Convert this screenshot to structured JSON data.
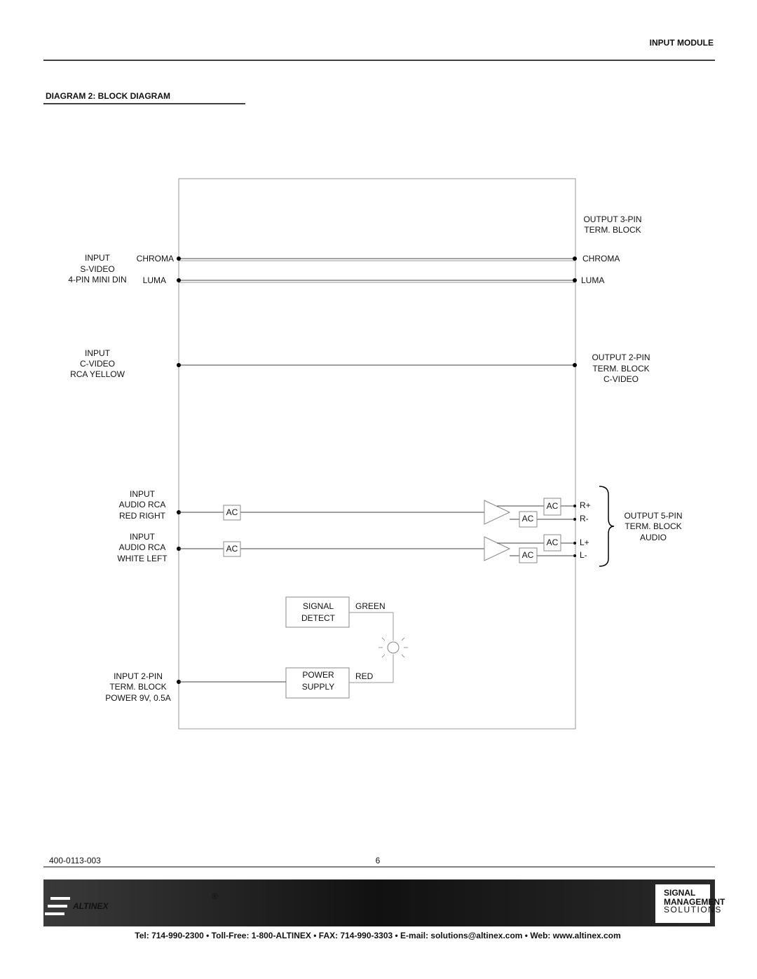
{
  "header": {
    "title": "INPUT MODULE"
  },
  "section_title": "DIAGRAM 2: BLOCK DIAGRAM",
  "diagram": {
    "svideo_input": [
      "INPUT",
      "S-VIDEO",
      "4-PIN MINI DIN"
    ],
    "svideo_signals": [
      "CHROMA",
      "LUMA"
    ],
    "svideo_output": [
      "OUTPUT 3-PIN",
      "TERM. BLOCK"
    ],
    "svideo_output_signals": [
      "CHROMA",
      "LUMA"
    ],
    "cvideo_input": [
      "INPUT",
      "C-VIDEO",
      "RCA YELLOW"
    ],
    "cvideo_output": [
      "OUTPUT 2-PIN",
      "TERM. BLOCK",
      "C-VIDEO"
    ],
    "audio_right_input": [
      "INPUT",
      "AUDIO RCA",
      "RED RIGHT"
    ],
    "audio_left_input": [
      "INPUT",
      "AUDIO RCA",
      "WHITE LEFT"
    ],
    "coupling": [
      "AC",
      "AC",
      "AC",
      "AC",
      "AC",
      "AC"
    ],
    "audio_pins": [
      "R+",
      "R-",
      "L+",
      "L-"
    ],
    "audio_output": [
      "OUTPUT 5-PIN",
      "TERM. BLOCK",
      "AUDIO"
    ],
    "signal_detect": [
      "SIGNAL",
      "DETECT"
    ],
    "power_supply": [
      "POWER",
      "SUPPLY"
    ],
    "led_colors": [
      "GREEN",
      "RED"
    ],
    "power_input": [
      "INPUT 2-PIN",
      "TERM. BLOCK",
      "POWER 9V, 0.5A"
    ]
  },
  "footer": {
    "doc_number": "400-0113-003",
    "page": "6",
    "brand": "ALTINEX",
    "registered": "®",
    "logo": [
      "SIGNAL",
      "MANAGEMENT",
      "SOLUTIONS"
    ],
    "contact": "Tel: 714-990-2300 • Toll-Free: 1-800-ALTINEX • FAX: 714-990-3303 • E-mail: solutions@altinex.com • Web: www.altinex.com"
  }
}
